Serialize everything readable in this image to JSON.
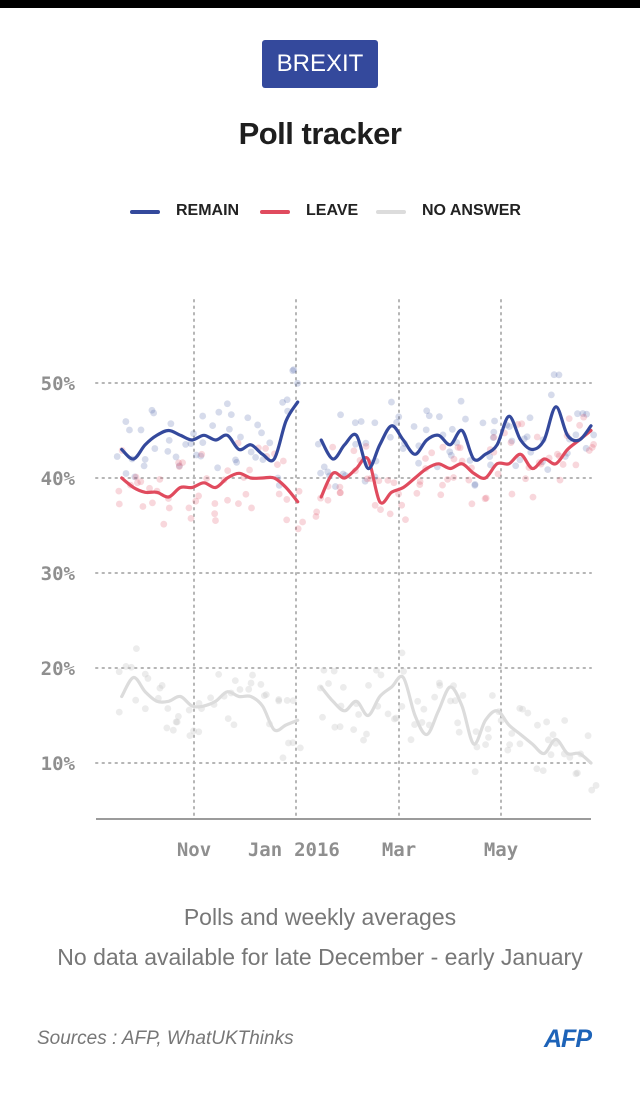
{
  "header": {
    "badge": "BREXIT",
    "title": "Poll tracker"
  },
  "legend": [
    {
      "label": "REMAIN",
      "color": "#34499c"
    },
    {
      "label": "LEAVE",
      "color": "#e04b5e"
    },
    {
      "label": "NO ANSWER",
      "color": "#dcdcdc"
    }
  ],
  "notes": {
    "line1": "Polls and weekly averages",
    "line2": "No data available for late December - early January"
  },
  "footer": {
    "source": "Sources : AFP, WhatUKThinks",
    "logo": "AFP"
  },
  "chart_data": {
    "type": "line",
    "title": "Poll tracker",
    "xlabel": "",
    "ylabel": "",
    "x_unit": "weeks since Sep 2015",
    "ylim": [
      3,
      60
    ],
    "xlim": [
      0,
      41
    ],
    "grid": true,
    "legend_position": "top",
    "y_ticks": [
      {
        "value": 10,
        "label": "10%"
      },
      {
        "value": 20,
        "label": "20%"
      },
      {
        "value": 30,
        "label": "30%"
      },
      {
        "value": 40,
        "label": "40%"
      },
      {
        "value": 50,
        "label": "50%"
      }
    ],
    "x_ticks": [
      {
        "value": 8,
        "label": "Nov"
      },
      {
        "value": 14,
        "label": "Jan"
      },
      {
        "value": 18.5,
        "label": "2016"
      },
      {
        "value": 25,
        "label": "Mar"
      },
      {
        "value": 34,
        "label": "May"
      }
    ],
    "gap_note": "No data available for late December - early January",
    "series": [
      {
        "name": "REMAIN",
        "color": "#34499c",
        "segments": [
          [
            [
              1,
              43
            ],
            [
              2,
              42
            ],
            [
              3,
              43.5
            ],
            [
              4,
              44.5
            ],
            [
              5,
              45
            ],
            [
              6,
              44.5
            ],
            [
              7,
              44
            ],
            [
              8,
              44.5
            ],
            [
              9,
              44
            ],
            [
              10,
              44.5
            ],
            [
              11,
              43
            ],
            [
              12,
              43.5
            ],
            [
              13,
              42.5
            ],
            [
              14,
              42
            ],
            [
              15,
              46
            ],
            [
              16,
              48
            ]
          ],
          [
            [
              18,
              44
            ],
            [
              19,
              42
            ],
            [
              20,
              43.5
            ],
            [
              21,
              44.5
            ],
            [
              22,
              41
            ],
            [
              23,
              43.5
            ],
            [
              24,
              45.5
            ],
            [
              25,
              44
            ],
            [
              26,
              42.5
            ],
            [
              27,
              44
            ],
            [
              28,
              44.5
            ],
            [
              29,
              43.5
            ],
            [
              30,
              45
            ],
            [
              31,
              42
            ],
            [
              32,
              42.5
            ],
            [
              33,
              43.5
            ],
            [
              34,
              46.5
            ],
            [
              35,
              44
            ],
            [
              36,
              43
            ],
            [
              37,
              44
            ],
            [
              38,
              47.5
            ],
            [
              39,
              44.5
            ],
            [
              40,
              44
            ],
            [
              41,
              45.5
            ]
          ]
        ]
      },
      {
        "name": "LEAVE",
        "color": "#e04b5e",
        "segments": [
          [
            [
              1,
              40
            ],
            [
              2,
              39
            ],
            [
              3,
              38.5
            ],
            [
              4,
              38.5
            ],
            [
              5,
              38
            ],
            [
              6,
              39
            ],
            [
              7,
              39
            ],
            [
              8,
              39.5
            ],
            [
              9,
              39
            ],
            [
              10,
              40
            ],
            [
              11,
              40.5
            ],
            [
              12,
              40
            ],
            [
              13,
              40
            ],
            [
              14,
              40
            ],
            [
              15,
              39
            ],
            [
              16,
              37.5
            ]
          ],
          [
            [
              18,
              38
            ],
            [
              19,
              40.5
            ],
            [
              20,
              40
            ],
            [
              21,
              41
            ],
            [
              22,
              42
            ],
            [
              23,
              37.5
            ],
            [
              24,
              38.5
            ],
            [
              25,
              39
            ],
            [
              26,
              40
            ],
            [
              27,
              41
            ],
            [
              28,
              41.5
            ],
            [
              29,
              41
            ],
            [
              30,
              41.5
            ],
            [
              31,
              40.5
            ],
            [
              32,
              40
            ],
            [
              33,
              41.5
            ],
            [
              34,
              41.5
            ],
            [
              35,
              42.5
            ],
            [
              36,
              41
            ],
            [
              37,
              42
            ],
            [
              38,
              41.5
            ],
            [
              39,
              43
            ],
            [
              40,
              44
            ],
            [
              41,
              45
            ]
          ]
        ]
      },
      {
        "name": "NO ANSWER",
        "color": "#dcdcdc",
        "segments": [
          [
            [
              1,
              17
            ],
            [
              2,
              19
            ],
            [
              3,
              17.5
            ],
            [
              4,
              16.5
            ],
            [
              5,
              16.5
            ],
            [
              6,
              17
            ],
            [
              7,
              16
            ],
            [
              8,
              16
            ],
            [
              9,
              16.5
            ],
            [
              10,
              17.5
            ],
            [
              11,
              17
            ],
            [
              12,
              17
            ],
            [
              13,
              16
            ],
            [
              14,
              13.5
            ],
            [
              15,
              14
            ],
            [
              16,
              14.5
            ]
          ],
          [
            [
              18,
              18
            ],
            [
              19,
              16.5
            ],
            [
              20,
              15.5
            ],
            [
              21,
              16.5
            ],
            [
              22,
              15
            ],
            [
              23,
              17
            ],
            [
              24,
              18
            ],
            [
              25,
              19
            ],
            [
              26,
              15
            ],
            [
              27,
              13
            ],
            [
              28,
              15.5
            ],
            [
              29,
              18
            ],
            [
              30,
              16
            ],
            [
              31,
              12
            ],
            [
              32,
              14.5
            ],
            [
              33,
              15.5
            ],
            [
              34,
              14
            ],
            [
              35,
              13
            ],
            [
              36,
              12
            ],
            [
              37,
              11
            ],
            [
              38,
              12.5
            ],
            [
              39,
              11
            ],
            [
              40,
              11
            ],
            [
              41,
              10
            ]
          ]
        ]
      }
    ]
  }
}
